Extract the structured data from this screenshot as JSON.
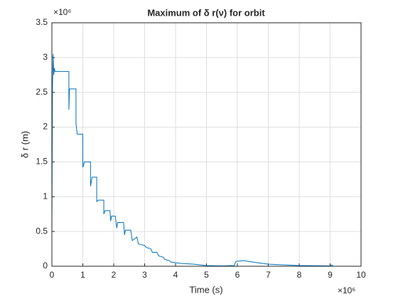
{
  "chart_data": {
    "type": "line",
    "title": "Maximum of δ r(ν) for orbit",
    "xlabel": "Time (s)",
    "ylabel": "δ r (m)",
    "x_exponent_label": "×10⁶",
    "y_exponent_label": "×10⁶",
    "x": [
      0,
      0.02,
      0.04,
      0.06,
      0.08,
      0.1,
      0.55,
      0.55,
      0.57,
      0.78,
      0.78,
      0.82,
      1.0,
      1.0,
      1.05,
      1.25,
      1.25,
      1.3,
      1.45,
      1.45,
      1.5,
      1.68,
      1.68,
      1.72,
      1.88,
      1.9,
      1.93,
      2.05,
      2.1,
      2.13,
      2.32,
      2.35,
      2.38,
      2.55,
      2.6,
      2.75,
      2.8,
      3.0,
      3.05,
      3.2,
      3.25,
      3.4,
      3.45,
      3.6,
      3.65,
      3.8,
      3.85,
      4.2,
      4.6,
      5.0,
      5.5,
      5.9,
      5.95,
      6.2,
      6.5,
      7.0,
      8.0,
      9.0,
      9.05,
      9.1
    ],
    "values": [
      0.5,
      2.6,
      3.05,
      2.75,
      2.85,
      2.8,
      2.8,
      2.25,
      2.55,
      2.55,
      2.05,
      1.9,
      1.9,
      1.42,
      1.5,
      1.5,
      1.15,
      1.28,
      1.28,
      0.93,
      0.95,
      0.95,
      0.75,
      0.8,
      0.8,
      0.65,
      0.72,
      0.72,
      0.55,
      0.63,
      0.63,
      0.45,
      0.52,
      0.52,
      0.37,
      0.42,
      0.32,
      0.3,
      0.27,
      0.25,
      0.2,
      0.2,
      0.15,
      0.13,
      0.1,
      0.08,
      0.06,
      0.04,
      0.03,
      0.01,
      0.005,
      0.01,
      0.07,
      0.08,
      0.06,
      0.03,
      0.01,
      0.005,
      0.02,
      0
    ],
    "color": "#0072bd",
    "xlim": [
      0,
      10
    ],
    "xticks": [
      0,
      1,
      2,
      3,
      4,
      5,
      6,
      7,
      8,
      9,
      10
    ],
    "ylim": [
      0,
      3.5
    ],
    "yticks": [
      0,
      0.5,
      1,
      1.5,
      2,
      2.5,
      3,
      3.5
    ],
    "grid": true
  }
}
